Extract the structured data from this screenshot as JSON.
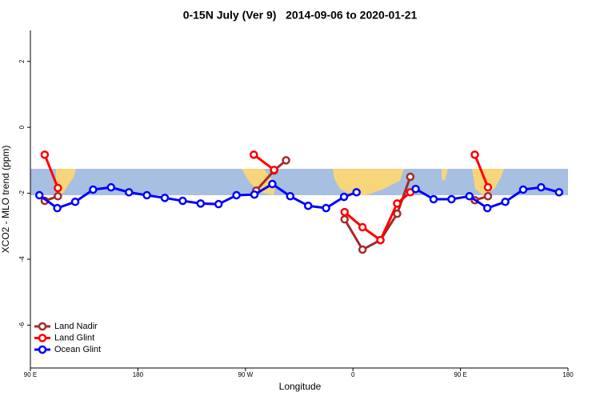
{
  "chart_data": {
    "type": "line",
    "title": "0-15N July (Ver 9)   2014-09-06 to 2020-01-21",
    "x_label": "Longitude",
    "y_label": "XCO2 - MLO trend (ppm)",
    "xlim": [
      90,
      540
    ],
    "xticks": [
      {
        "value": 90,
        "label": "90 E"
      },
      {
        "value": 180,
        "label": "180"
      },
      {
        "value": 270,
        "label": "90 W"
      },
      {
        "value": 360,
        "label": "0"
      },
      {
        "value": 450,
        "label": "90 E"
      },
      {
        "value": 540,
        "label": "180"
      }
    ],
    "ylim": [
      -7.3,
      2.94
    ],
    "yticks": [
      2,
      0,
      -2,
      -4,
      -6
    ],
    "legend_position": "bottom-left",
    "series": [
      {
        "name": "Land Nadir",
        "color": "#a52a2a",
        "x": [
          102,
          113,
          200,
          279,
          294,
          304,
          330,
          353,
          368,
          383,
          397,
          408,
          430,
          462,
          473
        ],
        "values": [
          -2.23,
          -2.09,
          null,
          -1.92,
          -1.31,
          -1.0,
          null,
          -2.79,
          -3.71,
          -3.42,
          -2.62,
          -1.5,
          null,
          -2.21,
          -2.09
        ]
      },
      {
        "name": "Land Glint",
        "color": "#ff0000",
        "x": [
          102,
          113,
          200,
          277,
          294,
          330,
          353,
          368,
          383,
          397,
          408,
          430,
          462,
          473
        ],
        "values": [
          -0.83,
          -1.84,
          null,
          -0.83,
          -1.29,
          null,
          -2.57,
          -3.03,
          -3.42,
          -2.31,
          -1.97,
          null,
          -0.83,
          -1.82
        ]
      },
      {
        "name": "Ocean Glint",
        "color": "#0000ff",
        "x": [
          97.5,
          112.5,
          127.5,
          142.5,
          157.5,
          172.5,
          187.5,
          202.5,
          217.5,
          232.5,
          247.5,
          262.5,
          277.5,
          292.5,
          307.5,
          322.5,
          337.5,
          352.5,
          363,
          390,
          412.5,
          427.5,
          442.5,
          457.5,
          472.5,
          487.5,
          502.5,
          517.5,
          532.5
        ],
        "values": [
          -2.06,
          -2.45,
          -2.26,
          -1.89,
          -1.82,
          -1.97,
          -2.06,
          -2.14,
          -2.23,
          -2.31,
          -2.33,
          -2.06,
          -2.04,
          -1.72,
          -2.09,
          -2.38,
          -2.45,
          -2.11,
          -1.97,
          null,
          -1.87,
          -2.18,
          -2.18,
          -2.09,
          -2.45,
          -2.26,
          -1.89,
          -1.82,
          -1.97
        ]
      }
    ]
  }
}
